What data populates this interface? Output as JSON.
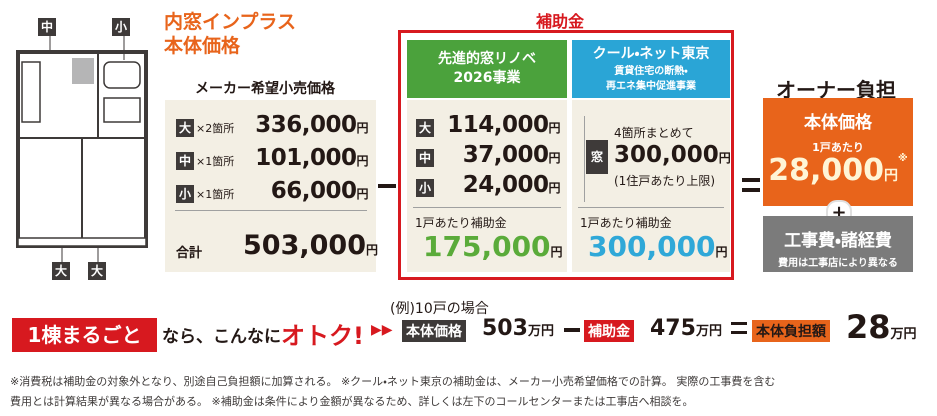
{
  "floor_plan": {
    "labels": [
      "中",
      "小",
      "大",
      "大"
    ]
  },
  "price": {
    "title": [
      "内窓インプラス",
      "本体価格"
    ],
    "heading": "メーカー希望小売価格",
    "rows": [
      {
        "size": "大",
        "qty": "×2箇所",
        "amount": "336,000",
        "unit": "円"
      },
      {
        "size": "中",
        "qty": "×1箇所",
        "amount": "101,000",
        "unit": "円"
      },
      {
        "size": "小",
        "qty": "×1箇所",
        "amount": "66,000",
        "unit": "円"
      }
    ],
    "total": {
      "label": "合計",
      "amount": "503,000",
      "unit": "円"
    }
  },
  "subsidy": {
    "heading": "補助金",
    "programs": [
      {
        "name": [
          "先進的窓リノベ",
          "2026事業"
        ],
        "rows": [
          {
            "size": "大",
            "amount": "114,000",
            "unit": "円"
          },
          {
            "size": "中",
            "amount": "37,000",
            "unit": "円"
          },
          {
            "size": "小",
            "amount": "24,000",
            "unit": "円"
          }
        ],
        "per_unit": {
          "label": "1戸あたり補助金",
          "amount": "175,000",
          "unit": "円"
        }
      },
      {
        "name": [
          "クール・ネット東京",
          "賃貸住宅の断熱・",
          "再エネ集中促進事業"
        ],
        "badge": "窓",
        "note": "4箇所まとめて",
        "amount": "300,000",
        "unit": "円",
        "cap": "(1住戸あたり上限)",
        "per_unit": {
          "label": "1戸あたり補助金",
          "amount": "300,000",
          "unit": "円"
        }
      }
    ]
  },
  "owner": {
    "heading": "オーナー負担",
    "label": "本体価格",
    "per_unit": "1戸あたり",
    "amount": "28,000",
    "unit": "円",
    "mark": "※",
    "extra": {
      "label": "工事費・諸経費",
      "note": "費用は工事店により異なる"
    }
  },
  "example": {
    "badge": "1棟まるごと",
    "text": "なら、こんなに",
    "highlight": "オトク!",
    "case": "(例)10戸の場合",
    "terms": [
      {
        "label": "本体価格",
        "amount": "503",
        "unit": "万円"
      },
      {
        "label": "補助金",
        "amount": "475",
        "unit": "万円"
      },
      {
        "label": "本体負担額",
        "amount": "28",
        "unit": "万円"
      }
    ]
  },
  "footnotes": [
    "※消費税は補助金の対象外となり、別途自己負担額に加算される。 ※クール・ネット東京の補助金は、メーカー小売希望価格での計算。 実際の工事費を含む",
    "費用とは計算結果が異なる場合がある。 ※補助金は条件により金額が異なるため、詳しくは左下のコールセンターまたは工事店へ相談を。"
  ]
}
